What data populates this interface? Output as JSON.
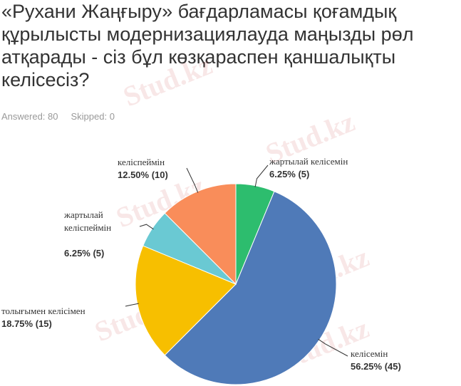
{
  "chart_data": {
    "type": "pie",
    "title": "«Рухани Жаңғыру» бағдарламасы қоғамдық құрылысты модернизациялауда маңызды рөл атқарады - сіз бұл көзқараспен қаншалықты келісесіз?",
    "answered": "Answered: 80",
    "skipped": "Skipped: 0",
    "watermark": "Stud.kz",
    "categories": [
      "жартылай келісемін",
      "келісемін",
      "толығымен келісімен",
      "жартылай келіспеймін",
      "келіспеймін"
    ],
    "values": [
      6.25,
      56.25,
      18.75,
      6.25,
      12.5
    ],
    "value_labels": [
      "6.25% (5)",
      "56.25% (45)",
      "18.75% (15)",
      "6.25% (5)",
      "12.50% (10)"
    ],
    "colors": [
      "#2dbd6e",
      "#4f7ab8",
      "#f7bf00",
      "#6ac9d3",
      "#f98d5a"
    ]
  }
}
